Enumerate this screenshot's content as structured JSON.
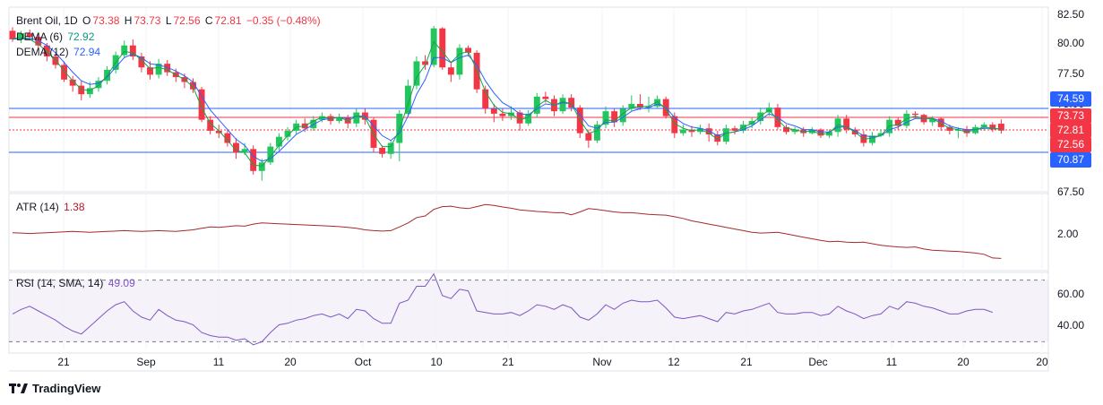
{
  "legend": {
    "symbol": "Brent Oil, 1D",
    "open_label": "O",
    "open": "73.38",
    "high_label": "H",
    "high": "73.73",
    "low_label": "L",
    "low": "72.56",
    "close_label": "C",
    "close": "72.81",
    "change": "−0.35 (−0.48%)",
    "dema6_label": "DEMA (6)",
    "dema6_value": "72.92",
    "dema12_label": "DEMA (12)",
    "dema12_value": "72.94",
    "atr_label": "ATR (14)",
    "atr_value": "1.38",
    "rsi_label": "RSI (14, SMA, 14)",
    "rsi_value": "49.09"
  },
  "price_axis": [
    "82.50",
    "80.00",
    "77.50",
    "75.00",
    "67.50"
  ],
  "atr_axis": [
    "2.00"
  ],
  "rsi_axis": [
    "60.00",
    "40.00"
  ],
  "x_axis": [
    "21",
    "Sep",
    "11",
    "20",
    "Oct",
    "10",
    "21",
    "Nov",
    "12",
    "21",
    "Dec",
    "11",
    "20",
    "20"
  ],
  "tags": [
    {
      "value": "74.59",
      "color": "#2962ff"
    },
    {
      "value": "73.73",
      "color": "#f23645"
    },
    {
      "value": "72.81",
      "color": "#f23645"
    },
    {
      "value": "72.56",
      "color": "#f23645"
    },
    {
      "value": "70.87",
      "color": "#2962ff"
    }
  ],
  "branding": "TradingView",
  "colors": {
    "up": "#22c55e",
    "down": "#f23645",
    "dema6": "#16a34a",
    "dema12": "#2962ff",
    "atr": "#a52a2a",
    "rsi": "#7e57c2"
  },
  "chart_data": {
    "type": "candlestick",
    "ylim": [
      67.5,
      82.5
    ],
    "candles": [
      [
        81.0,
        80.3,
        81.3,
        80.1
      ],
      [
        80.3,
        80.8,
        81.0,
        80.0
      ],
      [
        80.8,
        80.5,
        81.1,
        80.3
      ],
      [
        80.5,
        79.8,
        80.8,
        79.5
      ],
      [
        79.8,
        78.9,
        80.0,
        78.5
      ],
      [
        78.9,
        78.2,
        79.2,
        77.9
      ],
      [
        78.2,
        77.0,
        78.5,
        76.8
      ],
      [
        77.0,
        76.5,
        77.3,
        76.0
      ],
      [
        76.5,
        75.8,
        76.9,
        75.3
      ],
      [
        75.8,
        76.3,
        76.8,
        75.5
      ],
      [
        76.3,
        76.9,
        77.2,
        76.0
      ],
      [
        76.9,
        77.8,
        78.1,
        76.6
      ],
      [
        77.8,
        79.0,
        79.3,
        77.5
      ],
      [
        79.0,
        79.8,
        80.2,
        78.8
      ],
      [
        79.8,
        78.9,
        80.3,
        78.6
      ],
      [
        78.9,
        78.0,
        79.2,
        77.6
      ],
      [
        78.0,
        77.4,
        78.5,
        77.0
      ],
      [
        77.4,
        78.3,
        78.7,
        77.1
      ],
      [
        78.3,
        77.6,
        78.6,
        77.3
      ],
      [
        77.6,
        77.2,
        77.9,
        76.8
      ],
      [
        77.2,
        76.8,
        77.5,
        76.3
      ],
      [
        76.8,
        76.2,
        77.1,
        75.9
      ],
      [
        76.2,
        73.7,
        76.4,
        73.5
      ],
      [
        73.7,
        72.8,
        74.0,
        72.5
      ],
      [
        72.8,
        72.6,
        73.3,
        72.2
      ],
      [
        72.6,
        71.8,
        72.9,
        71.5
      ],
      [
        71.8,
        71.0,
        72.2,
        70.5
      ],
      [
        71.0,
        71.3,
        71.8,
        70.8
      ],
      [
        71.3,
        69.5,
        71.6,
        69.2
      ],
      [
        69.5,
        70.2,
        70.5,
        68.7
      ],
      [
        70.2,
        71.5,
        71.8,
        70.0
      ],
      [
        71.5,
        72.3,
        72.6,
        71.2
      ],
      [
        72.3,
        72.8,
        73.1,
        72.0
      ],
      [
        72.8,
        73.4,
        73.7,
        72.5
      ],
      [
        73.4,
        73.0,
        73.8,
        72.7
      ],
      [
        73.0,
        73.7,
        74.0,
        72.8
      ],
      [
        73.7,
        74.0,
        74.3,
        73.5
      ],
      [
        74.0,
        73.6,
        74.2,
        73.3
      ],
      [
        73.6,
        73.9,
        74.2,
        73.4
      ],
      [
        73.9,
        73.4,
        74.1,
        73.0
      ],
      [
        73.4,
        74.3,
        74.6,
        73.1
      ],
      [
        74.3,
        73.7,
        74.6,
        73.3
      ],
      [
        73.7,
        71.4,
        73.9,
        71.0
      ],
      [
        71.4,
        70.9,
        71.6,
        70.6
      ],
      [
        70.9,
        71.8,
        72.0,
        70.5
      ],
      [
        71.8,
        74.2,
        74.5,
        70.3
      ],
      [
        74.2,
        76.5,
        77.0,
        74.0
      ],
      [
        76.5,
        78.5,
        78.9,
        76.2
      ],
      [
        78.5,
        78.2,
        79.0,
        77.8
      ],
      [
        78.2,
        81.2,
        81.4,
        78.0
      ],
      [
        81.2,
        78.0,
        81.3,
        77.8
      ],
      [
        78.0,
        77.4,
        78.5,
        76.8
      ],
      [
        77.4,
        79.6,
        79.9,
        77.0
      ],
      [
        79.6,
        79.2,
        79.8,
        78.9
      ],
      [
        79.2,
        76.2,
        79.4,
        75.9
      ],
      [
        76.2,
        74.6,
        76.5,
        74.2
      ],
      [
        74.6,
        74.2,
        75.0,
        73.5
      ],
      [
        74.2,
        74.0,
        74.6,
        73.6
      ],
      [
        74.0,
        74.3,
        74.8,
        73.7
      ],
      [
        74.3,
        73.4,
        74.5,
        72.8
      ],
      [
        73.4,
        74.2,
        74.5,
        73.2
      ],
      [
        74.2,
        75.6,
        75.9,
        73.9
      ],
      [
        75.6,
        75.4,
        76.0,
        75.1
      ],
      [
        75.4,
        74.4,
        75.7,
        74.0
      ],
      [
        74.4,
        75.5,
        75.8,
        74.2
      ],
      [
        75.5,
        74.7,
        75.8,
        74.4
      ],
      [
        74.7,
        72.6,
        74.9,
        72.2
      ],
      [
        72.6,
        72.0,
        72.9,
        71.4
      ],
      [
        72.0,
        73.3,
        73.6,
        71.8
      ],
      [
        73.3,
        74.4,
        74.8,
        73.0
      ],
      [
        74.4,
        73.5,
        74.6,
        73.1
      ],
      [
        73.5,
        74.6,
        74.9,
        73.2
      ],
      [
        74.6,
        75.0,
        75.7,
        74.4
      ],
      [
        75.0,
        74.7,
        75.8,
        74.5
      ],
      [
        74.7,
        74.8,
        75.6,
        74.3
      ],
      [
        74.8,
        75.4,
        75.7,
        74.6
      ],
      [
        75.4,
        74.0,
        75.6,
        73.8
      ],
      [
        74.0,
        72.6,
        74.3,
        72.2
      ],
      [
        72.6,
        72.9,
        73.3,
        72.4
      ],
      [
        72.9,
        72.7,
        73.2,
        72.3
      ],
      [
        72.7,
        73.0,
        73.3,
        72.5
      ],
      [
        73.0,
        72.5,
        73.4,
        71.9
      ],
      [
        72.5,
        71.9,
        72.8,
        71.6
      ],
      [
        71.9,
        73.0,
        73.3,
        71.7
      ],
      [
        73.0,
        72.8,
        73.2,
        72.5
      ],
      [
        72.8,
        73.3,
        73.6,
        72.6
      ],
      [
        73.3,
        73.6,
        73.9,
        73.0
      ],
      [
        73.6,
        74.3,
        74.7,
        73.3
      ],
      [
        74.3,
        74.7,
        75.1,
        74.0
      ],
      [
        74.7,
        73.1,
        75.0,
        72.9
      ],
      [
        73.1,
        72.7,
        73.3,
        72.5
      ],
      [
        72.7,
        72.9,
        73.1,
        72.5
      ],
      [
        72.9,
        72.6,
        73.1,
        72.3
      ],
      [
        72.6,
        72.9,
        73.1,
        72.5
      ],
      [
        72.9,
        72.4,
        73.0,
        72.2
      ],
      [
        72.4,
        72.7,
        72.9,
        72.2
      ],
      [
        72.7,
        73.8,
        74.1,
        72.3
      ],
      [
        73.8,
        72.9,
        74.1,
        72.6
      ],
      [
        72.9,
        72.5,
        73.1,
        72.3
      ],
      [
        72.5,
        71.8,
        72.8,
        71.5
      ],
      [
        71.8,
        72.4,
        72.7,
        71.6
      ],
      [
        72.4,
        72.6,
        72.9,
        72.3
      ],
      [
        72.6,
        73.7,
        74.0,
        72.3
      ],
      [
        73.7,
        73.2,
        73.9,
        72.9
      ],
      [
        73.2,
        74.2,
        74.5,
        73.0
      ],
      [
        74.2,
        74.1,
        74.4,
        73.8
      ],
      [
        74.1,
        73.5,
        74.2,
        73.3
      ],
      [
        73.5,
        73.8,
        74.0,
        73.2
      ],
      [
        73.8,
        73.1,
        73.9,
        72.8
      ],
      [
        73.1,
        72.8,
        73.3,
        72.5
      ],
      [
        72.8,
        72.9,
        73.1,
        72.2
      ],
      [
        72.9,
        72.6,
        73.2,
        72.3
      ],
      [
        72.6,
        73.1,
        73.3,
        72.5
      ],
      [
        73.1,
        73.3,
        73.5,
        72.8
      ],
      [
        73.3,
        72.9,
        73.5,
        72.7
      ],
      [
        73.38,
        72.81,
        73.73,
        72.56
      ]
    ],
    "dema6": [
      80.4,
      80.4,
      80.3,
      79.9,
      79.3,
      78.6,
      77.7,
      76.9,
      76.2,
      76.1,
      76.5,
      77.3,
      78.4,
      79.3,
      79.2,
      78.6,
      77.9,
      78.0,
      77.8,
      77.4,
      77.0,
      76.4,
      74.7,
      73.4,
      72.8,
      72.0,
      71.2,
      71.0,
      70.0,
      69.9,
      70.7,
      71.6,
      72.4,
      73.1,
      73.2,
      73.6,
      73.9,
      73.8,
      73.9,
      73.6,
      74.0,
      73.9,
      72.5,
      71.5,
      71.5,
      72.9,
      75.0,
      77.2,
      78.2,
      80.1,
      79.3,
      78.4,
      79.1,
      79.3,
      77.8,
      76.0,
      74.9,
      74.3,
      74.2,
      73.7,
      73.9,
      74.8,
      75.3,
      74.9,
      75.2,
      75.0,
      73.7,
      72.6,
      72.8,
      73.7,
      73.6,
      74.2,
      74.7,
      74.8,
      74.8,
      75.2,
      74.6,
      73.4,
      73.0,
      72.8,
      72.9,
      72.6,
      72.1,
      72.6,
      72.7,
      73.1,
      73.4,
      74.0,
      74.5,
      73.7,
      73.0,
      72.9,
      72.7,
      72.8,
      72.5,
      72.6,
      73.3,
      73.1,
      72.7,
      72.1,
      72.2,
      72.4,
      73.2,
      73.3,
      73.8,
      74.0,
      73.8,
      73.8,
      73.4,
      73.0,
      72.9,
      72.7,
      72.9,
      73.1,
      73.0,
      72.92
    ],
    "dema12": [
      80.3,
      80.4,
      80.4,
      80.2,
      79.8,
      79.2,
      78.4,
      77.6,
      76.9,
      76.6,
      76.7,
      77.2,
      78.0,
      78.8,
      79.1,
      78.8,
      78.3,
      78.2,
      78.0,
      77.7,
      77.3,
      76.8,
      75.6,
      74.5,
      73.7,
      72.9,
      72.1,
      71.6,
      70.7,
      70.3,
      70.5,
      71.1,
      71.8,
      72.5,
      72.9,
      73.3,
      73.7,
      73.8,
      73.9,
      73.8,
      74.0,
      74.0,
      73.2,
      72.4,
      72.0,
      72.6,
      74.0,
      75.8,
      77.0,
      78.8,
      78.8,
      78.4,
      78.8,
      79.0,
      78.2,
      76.9,
      75.9,
      75.1,
      74.7,
      74.2,
      74.1,
      74.6,
      75.0,
      74.9,
      75.1,
      75.0,
      74.1,
      73.2,
      73.0,
      73.5,
      73.5,
      73.9,
      74.4,
      74.6,
      74.7,
      75.0,
      74.7,
      73.9,
      73.4,
      73.1,
      73.0,
      72.8,
      72.4,
      72.6,
      72.7,
      72.9,
      73.2,
      73.7,
      74.2,
      73.9,
      73.4,
      73.2,
      72.9,
      72.9,
      72.7,
      72.7,
      73.1,
      73.1,
      72.8,
      72.4,
      72.3,
      72.4,
      72.9,
      73.1,
      73.5,
      73.8,
      73.8,
      73.8,
      73.6,
      73.2,
      73.0,
      72.9,
      72.9,
      73.0,
      73.0,
      72.94
    ],
    "atr": [
      2.01,
      2.0,
      1.99,
      2.0,
      2.01,
      2.02,
      2.03,
      2.04,
      2.03,
      2.02,
      2.03,
      2.04,
      2.05,
      2.06,
      2.05,
      2.04,
      2.05,
      2.06,
      2.05,
      2.04,
      2.06,
      2.08,
      2.12,
      2.15,
      2.14,
      2.16,
      2.18,
      2.17,
      2.22,
      2.25,
      2.24,
      2.23,
      2.22,
      2.21,
      2.2,
      2.19,
      2.18,
      2.17,
      2.16,
      2.14,
      2.12,
      2.08,
      2.06,
      2.05,
      2.06,
      2.15,
      2.25,
      2.38,
      2.42,
      2.58,
      2.65,
      2.66,
      2.62,
      2.6,
      2.65,
      2.7,
      2.68,
      2.64,
      2.61,
      2.57,
      2.55,
      2.53,
      2.52,
      2.5,
      2.5,
      2.45,
      2.52,
      2.6,
      2.58,
      2.55,
      2.52,
      2.5,
      2.5,
      2.48,
      2.46,
      2.45,
      2.44,
      2.4,
      2.36,
      2.3,
      2.26,
      2.22,
      2.18,
      2.14,
      2.1,
      2.06,
      2.02,
      2.0,
      2.01,
      2.02,
      1.98,
      1.94,
      1.9,
      1.86,
      1.82,
      1.79,
      1.8,
      1.78,
      1.77,
      1.78,
      1.74,
      1.7,
      1.68,
      1.66,
      1.65,
      1.66,
      1.61,
      1.58,
      1.57,
      1.56,
      1.55,
      1.53,
      1.51,
      1.48,
      1.39,
      1.38
    ],
    "rsi": [
      48,
      51,
      53,
      50,
      47,
      44,
      40,
      37,
      35,
      40,
      45,
      50,
      54,
      56,
      50,
      46,
      44,
      51,
      47,
      44,
      43,
      41,
      36,
      34,
      33,
      33,
      31,
      32,
      28,
      30,
      36,
      41,
      42,
      44,
      45,
      47,
      48,
      46,
      48,
      45,
      51,
      50,
      45,
      42,
      42,
      55,
      57,
      66,
      66,
      74,
      60,
      58,
      64,
      63,
      50,
      49,
      48,
      48,
      49,
      47,
      50,
      54,
      53,
      51,
      54,
      52,
      46,
      44,
      48,
      54,
      51,
      55,
      57,
      56,
      56,
      57,
      52,
      46,
      45,
      46,
      47,
      45,
      43,
      49,
      48,
      50,
      51,
      53,
      55,
      49,
      48,
      48,
      49,
      49,
      47,
      48,
      53,
      50,
      48,
      45,
      47,
      48,
      53,
      51,
      56,
      55,
      53,
      52,
      50,
      48,
      48,
      50,
      51,
      51,
      49.09
    ]
  }
}
